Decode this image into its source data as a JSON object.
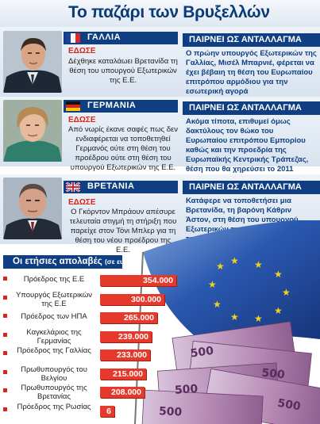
{
  "title": "Το παζάρι των Βρυξελλών",
  "sections": [
    {
      "country": "ΓΑΛΛΙΑ",
      "flag": "france-flag",
      "gave_label": "ΕΔΩΣΕ",
      "gave_text": "Δέχθηκε καταλάωει Βρετανίδα τη θέση του υπουργού Εξωτερικών της Ε.Ε.",
      "gets_label": "ΠΑΙΡΝΕΙ ΩΣ ΑΝΤΑΛΛΑΓΜΑ",
      "gets_text": "Ο πρώην υπουργός Εξωτερικών της Γαλλίας, Μισέλ Μπαρνιέ, φέρεται να έχει βέβαιη τη θέση του Ευρωπαίου επιτρόπου αρμόδιου για την εσωτερική αγορά"
    },
    {
      "country": "ΓΕΡΜΑΝΙΑ",
      "flag": "germany-flag",
      "gave_label": "ΕΔΩΣΕ",
      "gave_text": "Από νωρίς έκανε σαφές πως δεν ενδιαφέρεται να τοποθετηθεί Γερμανός ούτε στη θέση του προέδρου ούτε στη θέση του υπουργού Εξωτερικών της Ε.Ε.",
      "gets_label": "ΠΑΙΡΝΕΙ ΩΣ ΑΝΤΑΛΛΑΓΜΑ",
      "gets_text": "Ακόμα τίποτα, επιθυμεί όμως δακτύλους τον θώκο του Ευρωπαίου επιτρόπου Εμπορίου καθώς και την προεδρία της Ευρωπαϊκής Κεντρικής Τράπεζας, θέση που θα χηρεύσει το 2011"
    },
    {
      "country": "ΒΡΕΤΑΝΙΑ",
      "flag": "uk-flag",
      "gave_label": "ΕΔΩΣΕ",
      "gave_text": "Ο Γκόρντον Μπράουν απέσυρε τελευταία στιγμή τη στήριξη που παρείχε στον Τόνι Μπλερ για τη θέση του νέου προέδρου της Ε.Ε.",
      "gets_label": "ΠΑΙΡΝΕΙ ΩΣ ΑΝΤΑΛΛΑΓΜΑ",
      "gets_text": "Κατάφερε να τοποθετήσει μια Βρετανίδα, τη βαρόνη Κάθριν Άστον, στη θέση του υπουργού Εξωτερικών της Ε.Ε. – και ταυτόχρονα, αντιπρό-δρου της Κομισιόν"
    }
  ],
  "salaries": {
    "title": "Οι ετήσιες απολαβές",
    "unit": "(σε ευρώ)",
    "max": 354000
  },
  "chart_data": {
    "type": "bar",
    "title": "Οι ετήσιες απολαβές (σε ευρώ)",
    "categories": [
      "Πρόεδρος της Ε.Ε",
      "Υπουργός Εξωτερικών της Ε.Ε",
      "Πρόεδρος των ΗΠΑ",
      "Καγκελάριος της Γερμανίας",
      "Πρόεδρος της Γαλλίας",
      "Πρωθυπουργός του Βελγίου",
      "Πρωθυπουργός της Βρετανίας",
      "Πρόεδρος της Ρωσίας"
    ],
    "values": [
      354000,
      300000,
      265000,
      239000,
      233000,
      215000,
      208000,
      null
    ],
    "value_labels": [
      "354.000",
      "300.000",
      "265.000",
      "239.000",
      "233.000",
      "215.000",
      "208.000",
      "6"
    ],
    "bar_color": "#e53a2b"
  },
  "colors": {
    "navy": "#0f3f82",
    "red": "#d8261b"
  }
}
